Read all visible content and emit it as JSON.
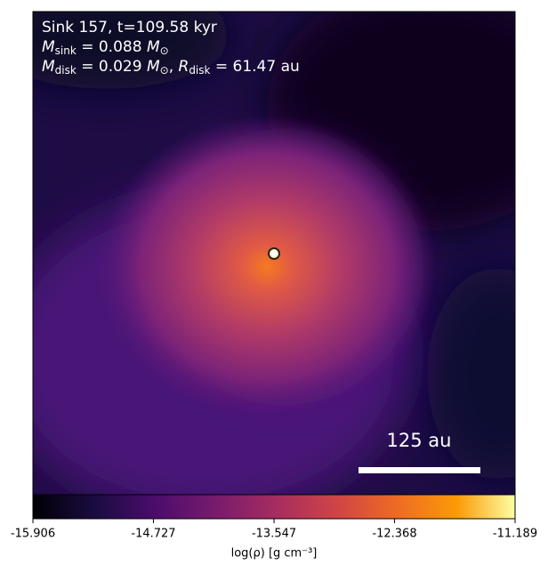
{
  "chart_data": {
    "type": "heatmap",
    "annotation_lines": [
      [
        "Sink 157, t=109.58 kyr"
      ],
      [
        "M",
        "sink",
        " = 0.088 ",
        "M",
        "⊙"
      ],
      [
        "M",
        "disk",
        " = 0.029 ",
        "M",
        "⊙",
        ", ",
        "R",
        "disk",
        " = 61.47 au"
      ]
    ],
    "scale_bar_label": "125 au",
    "colormap": "inferno",
    "clim": [
      -15.906,
      -11.189
    ],
    "colorbar_ticks": [
      -15.906,
      -14.727,
      -13.547,
      -12.368,
      -11.189
    ],
    "colorbar_label": "log(ρ) [g cm⁻³]"
  }
}
